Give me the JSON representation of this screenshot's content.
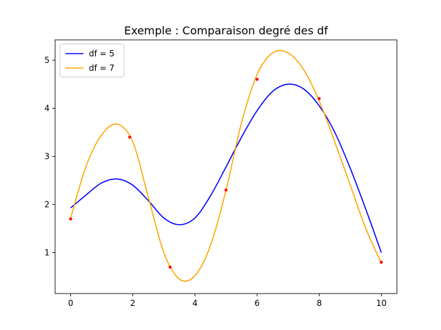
{
  "chart_data": {
    "type": "line",
    "title": "Exemple : Comparaison degré des df",
    "xlabel": "",
    "ylabel": "",
    "xlim": [
      -0.5,
      10.5
    ],
    "ylim": [
      0.15,
      5.42
    ],
    "xticks": [
      0,
      2,
      4,
      6,
      8,
      10
    ],
    "xtick_labels": [
      "0",
      "2",
      "4",
      "6",
      "8",
      "10"
    ],
    "yticks": [
      1,
      2,
      3,
      4,
      5
    ],
    "ytick_labels": [
      "1",
      "2",
      "3",
      "4",
      "5"
    ],
    "grid": false,
    "legend_position": "top-left",
    "points": {
      "color": "#ff0000",
      "x": [
        0,
        1.9,
        3.2,
        5,
        6,
        8,
        10
      ],
      "y": [
        1.7,
        3.4,
        0.7,
        2.3,
        4.6,
        4.2,
        0.8
      ]
    },
    "series": [
      {
        "name": "df = 5",
        "color": "#0000ff",
        "x": [
          0,
          0.5,
          1,
          1.5,
          2,
          2.5,
          3,
          3.5,
          4,
          4.5,
          5,
          5.5,
          6,
          6.5,
          7,
          7.5,
          8,
          8.5,
          9,
          9.5,
          10
        ],
        "y": [
          1.93,
          2.2,
          2.45,
          2.53,
          2.4,
          2.08,
          1.72,
          1.58,
          1.72,
          2.18,
          2.78,
          3.4,
          3.95,
          4.35,
          4.5,
          4.4,
          4.05,
          3.5,
          2.75,
          1.9,
          1.0
        ]
      },
      {
        "name": "df = 7",
        "color": "#ffa500",
        "x": [
          0,
          0.5,
          1,
          1.5,
          2,
          2.5,
          3,
          3.5,
          4,
          4.5,
          5,
          5.5,
          6,
          6.5,
          7,
          7.5,
          8,
          8.5,
          9,
          9.5,
          10
        ],
        "y": [
          1.72,
          2.8,
          3.45,
          3.67,
          3.3,
          2.15,
          1.0,
          0.45,
          0.52,
          1.15,
          2.3,
          3.7,
          4.7,
          5.15,
          5.15,
          4.8,
          4.15,
          3.3,
          2.4,
          1.5,
          0.78
        ]
      }
    ]
  }
}
